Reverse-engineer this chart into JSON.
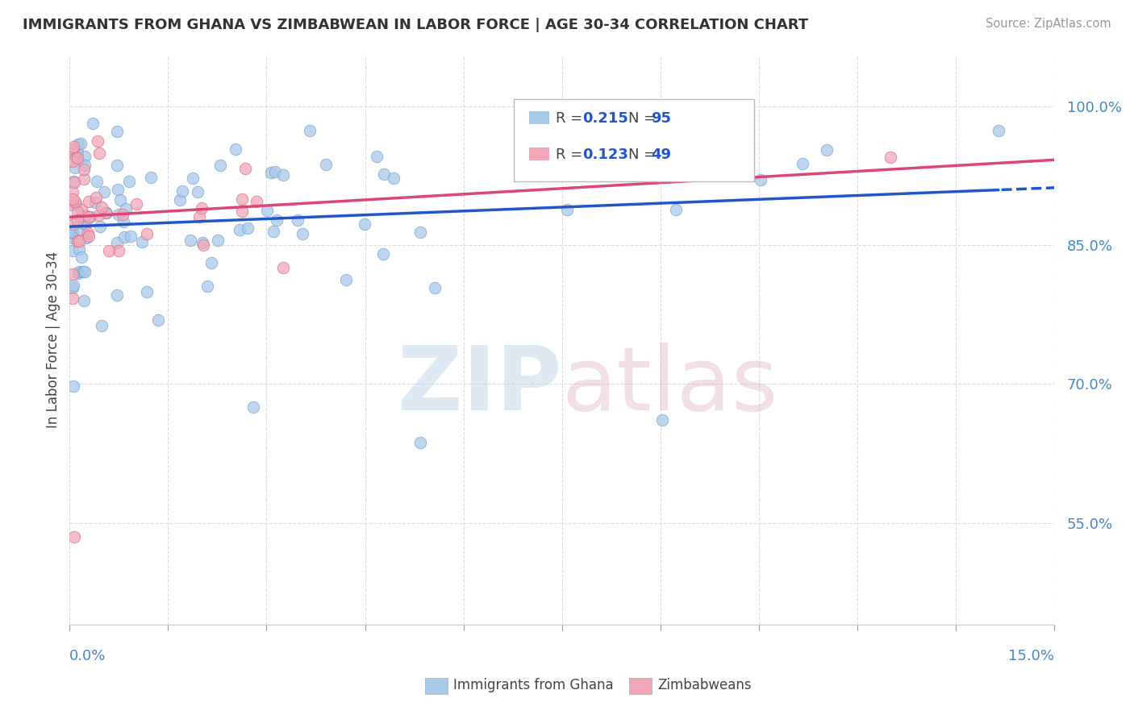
{
  "title": "IMMIGRANTS FROM GHANA VS ZIMBABWEAN IN LABOR FORCE | AGE 30-34 CORRELATION CHART",
  "source": "Source: ZipAtlas.com",
  "ylabel": "In Labor Force | Age 30-34",
  "xmin": 0.0,
  "xmax": 0.15,
  "ymin": 0.44,
  "ymax": 1.055,
  "ytick_values": [
    0.55,
    0.7,
    0.85,
    1.0
  ],
  "ytick_labels": [
    "55.0%",
    "70.0%",
    "85.0%",
    "100.0%"
  ],
  "ghana_color": "#a8c8e8",
  "ghana_edge_color": "#6aa0d0",
  "zimbabwe_color": "#f0a8b8",
  "zimbabwe_edge_color": "#e06080",
  "ghana_line_color": "#2255cc",
  "zimbabwe_line_color": "#dd4477",
  "ghana_R": 0.215,
  "ghana_N": 95,
  "zimbabwe_R": 0.123,
  "zimbabwe_N": 49,
  "legend_ghana_label": "Immigrants from Ghana",
  "legend_zimbabwe_label": "Zimbabweans",
  "r_label_color": "#2255cc",
  "n_label_color": "#2255cc",
  "grid_color": "#dddddd",
  "grid_style": "--"
}
